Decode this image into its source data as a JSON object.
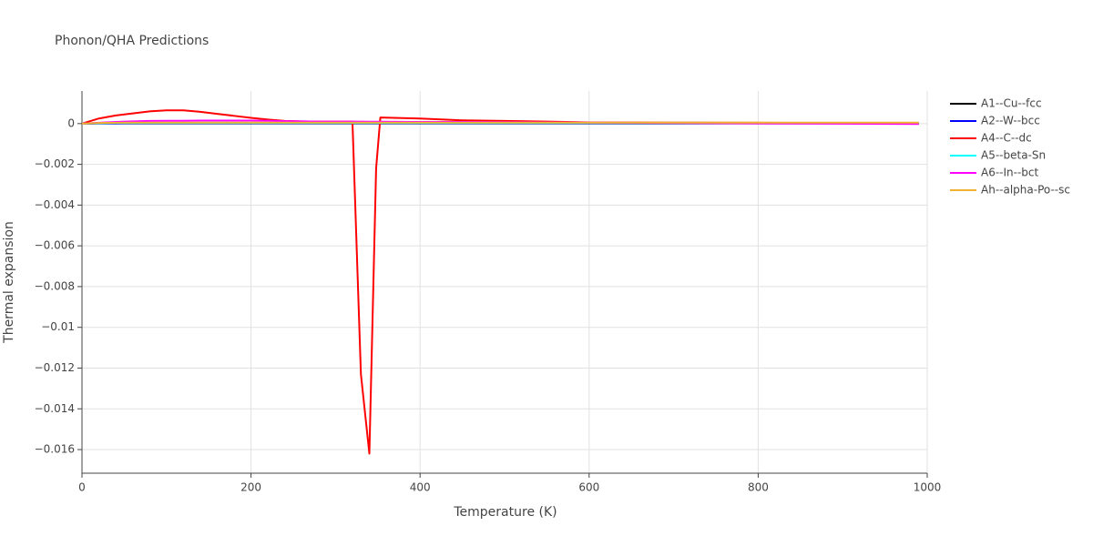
{
  "chart_data": {
    "type": "line",
    "title": "Phonon/QHA Predictions",
    "x_label": "Temperature (K)",
    "y_label": "Thermal expansion",
    "x": [
      0,
      20,
      40,
      60,
      80,
      100,
      120,
      140,
      160,
      180,
      200,
      220,
      240,
      260,
      280,
      300,
      320,
      330,
      340,
      348,
      353,
      400,
      450,
      500,
      550,
      600,
      700,
      800,
      900,
      990
    ],
    "series": [
      {
        "name": "A1--Cu--fcc",
        "color": "#000000",
        "values": [
          0,
          1e-05,
          1e-05,
          1e-05,
          1e-05,
          1e-05,
          1e-05,
          1e-05,
          1e-05,
          1e-05,
          1e-05,
          1e-05,
          1e-05,
          1e-05,
          1e-05,
          1e-05,
          1e-05,
          1e-05,
          1e-05,
          1e-05,
          1e-05,
          1e-05,
          1e-05,
          1e-05,
          1e-05,
          1e-05,
          1e-05,
          1e-05,
          1e-05,
          1e-05
        ]
      },
      {
        "name": "A2--W--bcc",
        "color": "#0000ff",
        "values": [
          0,
          1e-05,
          1e-05,
          2e-05,
          2e-05,
          2e-05,
          2e-05,
          2e-05,
          2e-05,
          2e-05,
          2e-05,
          2e-05,
          2e-05,
          2e-05,
          2e-05,
          2e-05,
          2e-05,
          2e-05,
          2e-05,
          2e-05,
          2e-05,
          2e-05,
          2e-05,
          2e-05,
          2e-05,
          2e-05,
          2e-05,
          2e-05,
          2e-05,
          2e-05
        ]
      },
      {
        "name": "A4--C--dc",
        "color": "#ff0000",
        "values": [
          0,
          0.00025,
          0.0004,
          0.0005,
          0.0006,
          0.00065,
          0.00065,
          0.00058,
          0.00048,
          0.00038,
          0.00028,
          0.0002,
          0.00013,
          0.00011,
          0.0001,
          0.0001,
          0.0001,
          -0.0123,
          -0.0162,
          -0.0022,
          0.0003,
          0.00025,
          0.00016,
          0.00013,
          0.0001,
          6e-05,
          5e-05,
          4e-05,
          3e-05,
          2e-05
        ]
      },
      {
        "name": "A5--beta-Sn",
        "color": "#00ffff",
        "values": [
          0,
          2e-05,
          3e-05,
          3e-05,
          3e-05,
          3e-05,
          3e-05,
          3e-05,
          3e-05,
          3e-05,
          3e-05,
          3e-05,
          3e-05,
          3e-05,
          3e-05,
          3e-05,
          3e-05,
          3e-05,
          3e-05,
          3e-05,
          3e-05,
          3e-05,
          3e-05,
          3e-05,
          3e-05,
          3e-05,
          3e-05,
          3e-05,
          3e-05,
          3e-05
        ]
      },
      {
        "name": "A6--In--bct",
        "color": "#ff00ff",
        "values": [
          0,
          4e-05,
          8e-05,
          0.00011,
          0.00013,
          0.00014,
          0.00014,
          0.00015,
          0.00015,
          0.00015,
          0.00015,
          0.00014,
          0.00012,
          0.00011,
          0.0001,
          0.0001,
          0.0001,
          0.0001,
          9e-05,
          9e-05,
          9e-05,
          8e-05,
          8e-05,
          7e-05,
          6e-05,
          5e-05,
          3e-05,
          1e-05,
          0,
          -2e-05
        ]
      },
      {
        "name": "Ah--alpha-Po--sc",
        "color": "#f0b030",
        "values": [
          0,
          3e-05,
          4e-05,
          5e-05,
          5e-05,
          5e-05,
          5e-05,
          5e-05,
          5e-05,
          5e-05,
          5e-05,
          5e-05,
          5e-05,
          5e-05,
          5e-05,
          5e-05,
          5e-05,
          5e-05,
          5e-05,
          5e-05,
          5e-05,
          5e-05,
          5e-05,
          5e-05,
          5e-05,
          5e-05,
          5e-05,
          5e-05,
          5e-05,
          5e-05
        ]
      }
    ],
    "xlim": [
      0,
      1000
    ],
    "xticks": [
      0,
      200,
      400,
      600,
      800,
      1000
    ],
    "ylim": [
      -0.01716,
      0.0016
    ],
    "yticks": [
      0,
      {
        "value": -0.002,
        "label": "−0.002"
      },
      {
        "value": -0.004,
        "label": "−0.004"
      },
      {
        "value": -0.006,
        "label": "−0.006"
      },
      {
        "value": -0.008,
        "label": "−0.008"
      },
      {
        "value": -0.01,
        "label": "−0.01"
      },
      {
        "value": -0.012,
        "label": "−0.012"
      },
      {
        "value": -0.014,
        "label": "−0.014"
      },
      {
        "value": -0.016,
        "label": "−0.016"
      }
    ],
    "grid": true
  }
}
